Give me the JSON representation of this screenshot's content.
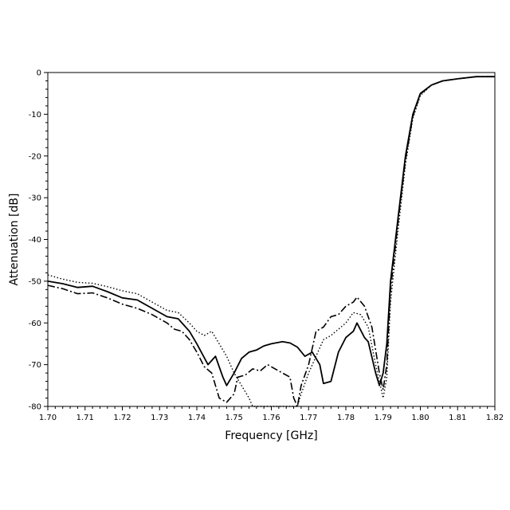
{
  "chart_data": {
    "type": "line",
    "title": "",
    "xlabel": "Frequency [GHz]",
    "ylabel": "Attenuation [dB]",
    "xlim": [
      1.7,
      1.82
    ],
    "ylim": [
      -80,
      0
    ],
    "x_ticks": [
      1.7,
      1.71,
      1.72,
      1.73,
      1.74,
      1.75,
      1.76,
      1.77,
      1.78,
      1.79,
      1.8,
      1.81,
      1.82
    ],
    "x_tick_labels": [
      "1.70",
      "1.71",
      "1.72",
      "1.73",
      "1.74",
      "1.75",
      "1.76",
      "1.77",
      "1.78",
      "1.79",
      "1.80",
      "1.81",
      "1.82"
    ],
    "y_ticks": [
      0,
      -10,
      -20,
      -30,
      -40,
      -50,
      -60,
      -70,
      -80
    ],
    "y_tick_labels": [
      "0",
      "-10",
      "-20",
      "-30",
      "-40",
      "-50",
      "-60",
      "-70",
      "-80"
    ],
    "grid": false,
    "series": [
      {
        "style": "solid",
        "color": "#000000",
        "points": [
          [
            1.7,
            -50.0
          ],
          [
            1.704,
            -50.6
          ],
          [
            1.708,
            -51.5
          ],
          [
            1.712,
            -51.2
          ],
          [
            1.716,
            -52.5
          ],
          [
            1.72,
            -54.0
          ],
          [
            1.724,
            -54.5
          ],
          [
            1.728,
            -56.5
          ],
          [
            1.732,
            -58.5
          ],
          [
            1.735,
            -59.0
          ],
          [
            1.738,
            -62.0
          ],
          [
            1.74,
            -65.0
          ],
          [
            1.743,
            -70.0
          ],
          [
            1.745,
            -68.0
          ],
          [
            1.747,
            -73.0
          ],
          [
            1.748,
            -75.0
          ],
          [
            1.75,
            -72.0
          ],
          [
            1.752,
            -68.5
          ],
          [
            1.754,
            -67.0
          ],
          [
            1.756,
            -66.5
          ],
          [
            1.758,
            -65.5
          ],
          [
            1.76,
            -65.0
          ],
          [
            1.763,
            -64.5
          ],
          [
            1.765,
            -64.8
          ],
          [
            1.767,
            -65.8
          ],
          [
            1.769,
            -68.0
          ],
          [
            1.771,
            -67.0
          ],
          [
            1.773,
            -70.0
          ],
          [
            1.774,
            -74.5
          ],
          [
            1.776,
            -74.0
          ],
          [
            1.778,
            -67.0
          ],
          [
            1.78,
            -63.5
          ],
          [
            1.782,
            -62.0
          ],
          [
            1.783,
            -60.0
          ],
          [
            1.785,
            -63.5
          ],
          [
            1.786,
            -64.5
          ],
          [
            1.788,
            -72.0
          ],
          [
            1.789,
            -75.0
          ],
          [
            1.79,
            -72.0
          ],
          [
            1.791,
            -65.0
          ],
          [
            1.792,
            -50.0
          ],
          [
            1.794,
            -35.0
          ],
          [
            1.796,
            -20.0
          ],
          [
            1.798,
            -10.0
          ],
          [
            1.8,
            -5.0
          ],
          [
            1.803,
            -3.0
          ],
          [
            1.806,
            -2.0
          ],
          [
            1.81,
            -1.5
          ],
          [
            1.815,
            -1.0
          ],
          [
            1.82,
            -1.0
          ]
        ]
      },
      {
        "style": "dotted",
        "color": "#000000",
        "points": [
          [
            1.7,
            -48.5
          ],
          [
            1.704,
            -49.5
          ],
          [
            1.708,
            -50.3
          ],
          [
            1.712,
            -50.5
          ],
          [
            1.716,
            -51.3
          ],
          [
            1.72,
            -52.3
          ],
          [
            1.724,
            -53.0
          ],
          [
            1.728,
            -55.0
          ],
          [
            1.732,
            -57.0
          ],
          [
            1.735,
            -57.5
          ],
          [
            1.738,
            -60.0
          ],
          [
            1.74,
            -62.0
          ],
          [
            1.742,
            -63.0
          ],
          [
            1.744,
            -62.0
          ],
          [
            1.746,
            -65.0
          ],
          [
            1.748,
            -68.0
          ],
          [
            1.75,
            -72.0
          ],
          [
            1.752,
            -75.0
          ],
          [
            1.754,
            -78.0
          ],
          [
            1.755,
            -80.0
          ],
          [
            1.767,
            -80.0
          ],
          [
            1.768,
            -77.0
          ],
          [
            1.77,
            -72.0
          ],
          [
            1.772,
            -68.0
          ],
          [
            1.774,
            -64.0
          ],
          [
            1.776,
            -63.0
          ],
          [
            1.778,
            -61.5
          ],
          [
            1.78,
            -60.0
          ],
          [
            1.782,
            -57.5
          ],
          [
            1.784,
            -58.0
          ],
          [
            1.786,
            -61.0
          ],
          [
            1.788,
            -70.0
          ],
          [
            1.79,
            -78.0
          ],
          [
            1.791,
            -73.0
          ],
          [
            1.792,
            -55.0
          ],
          [
            1.794,
            -38.0
          ],
          [
            1.796,
            -22.0
          ],
          [
            1.798,
            -11.0
          ],
          [
            1.8,
            -5.5
          ],
          [
            1.803,
            -3.0
          ],
          [
            1.806,
            -2.0
          ],
          [
            1.81,
            -1.5
          ],
          [
            1.815,
            -1.0
          ],
          [
            1.82,
            -1.0
          ]
        ]
      },
      {
        "style": "dash-dot",
        "color": "#000000",
        "points": [
          [
            1.7,
            -51.0
          ],
          [
            1.704,
            -51.8
          ],
          [
            1.708,
            -53.0
          ],
          [
            1.712,
            -52.8
          ],
          [
            1.716,
            -54.0
          ],
          [
            1.72,
            -55.5
          ],
          [
            1.724,
            -56.5
          ],
          [
            1.728,
            -58.0
          ],
          [
            1.732,
            -60.0
          ],
          [
            1.734,
            -61.5
          ],
          [
            1.736,
            -62.0
          ],
          [
            1.738,
            -64.0
          ],
          [
            1.74,
            -67.0
          ],
          [
            1.742,
            -70.5
          ],
          [
            1.744,
            -72.0
          ],
          [
            1.746,
            -78.0
          ],
          [
            1.748,
            -79.0
          ],
          [
            1.75,
            -77.0
          ],
          [
            1.751,
            -73.0
          ],
          [
            1.753,
            -72.5
          ],
          [
            1.755,
            -71.0
          ],
          [
            1.757,
            -71.5
          ],
          [
            1.759,
            -70.0
          ],
          [
            1.761,
            -71.0
          ],
          [
            1.763,
            -72.0
          ],
          [
            1.765,
            -73.0
          ],
          [
            1.766,
            -78.0
          ],
          [
            1.767,
            -80.0
          ],
          [
            1.768,
            -75.0
          ],
          [
            1.77,
            -70.0
          ],
          [
            1.772,
            -62.0
          ],
          [
            1.774,
            -61.0
          ],
          [
            1.776,
            -58.5
          ],
          [
            1.778,
            -58.0
          ],
          [
            1.78,
            -56.0
          ],
          [
            1.782,
            -55.0
          ],
          [
            1.783,
            -53.8
          ],
          [
            1.785,
            -56.0
          ],
          [
            1.787,
            -61.0
          ],
          [
            1.789,
            -72.0
          ],
          [
            1.79,
            -76.0
          ],
          [
            1.791,
            -70.0
          ],
          [
            1.792,
            -52.0
          ],
          [
            1.794,
            -36.0
          ],
          [
            1.796,
            -21.0
          ],
          [
            1.798,
            -10.5
          ],
          [
            1.8,
            -5.2
          ],
          [
            1.803,
            -3.0
          ],
          [
            1.806,
            -2.0
          ],
          [
            1.81,
            -1.5
          ],
          [
            1.815,
            -1.0
          ],
          [
            1.82,
            -1.0
          ]
        ]
      }
    ]
  }
}
